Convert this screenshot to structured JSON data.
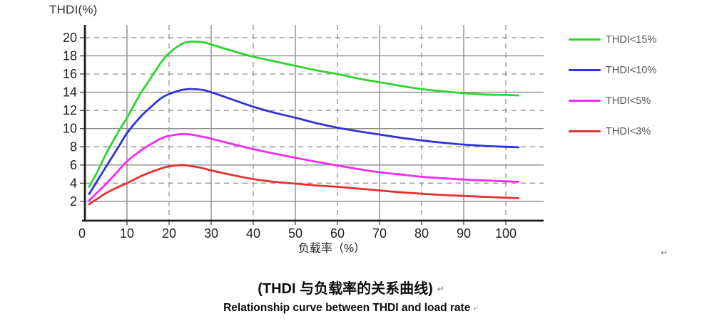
{
  "chart_data": {
    "type": "line",
    "title": "",
    "y_axis_title": "THDI(%)",
    "x_axis_title": "负载率（%）",
    "x_ticks": [
      0,
      10,
      20,
      30,
      40,
      50,
      60,
      70,
      80,
      90,
      100
    ],
    "y_ticks": [
      2,
      4,
      6,
      8,
      10,
      12,
      14,
      16,
      18,
      20
    ],
    "xlim": [
      0,
      109
    ],
    "ylim": [
      0,
      21.5
    ],
    "grid": {
      "horizontal_solid": [
        2,
        6,
        10,
        14,
        18
      ],
      "horizontal_dashed": [
        4,
        8,
        12,
        16,
        20
      ],
      "vertical_solid": [
        10,
        30,
        50,
        70,
        90
      ],
      "vertical_dashed": [
        20,
        40,
        60,
        80,
        100
      ]
    },
    "legend_position": "right",
    "x": [
      1,
      3,
      5,
      8,
      10,
      13,
      15,
      18,
      20,
      23,
      25,
      28,
      30,
      35,
      40,
      45,
      50,
      55,
      60,
      65,
      70,
      75,
      80,
      85,
      90,
      95,
      100,
      103
    ],
    "series": [
      {
        "name": "THDI<15%",
        "color": "#2ed52e",
        "values": [
          3.6,
          5.3,
          7.2,
          9.7,
          11.2,
          13.7,
          15.1,
          17.2,
          18.3,
          19.3,
          19.55,
          19.5,
          19.25,
          18.55,
          17.9,
          17.4,
          16.9,
          16.4,
          16.0,
          15.5,
          15.1,
          14.7,
          14.35,
          14.1,
          13.9,
          13.75,
          13.7,
          13.65
        ]
      },
      {
        "name": "THDI<10%",
        "color": "#3232d8",
        "values": [
          2.8,
          4.3,
          5.8,
          8.0,
          9.5,
          11.2,
          12.1,
          13.3,
          13.8,
          14.25,
          14.35,
          14.25,
          14.0,
          13.2,
          12.4,
          11.75,
          11.2,
          10.6,
          10.1,
          9.7,
          9.35,
          9.0,
          8.7,
          8.45,
          8.25,
          8.1,
          8.0,
          7.95
        ]
      },
      {
        "name": "THDI<5%",
        "color": "#f22cf2",
        "values": [
          2.1,
          3.0,
          3.9,
          5.4,
          6.4,
          7.5,
          8.1,
          8.9,
          9.2,
          9.4,
          9.35,
          9.1,
          8.9,
          8.3,
          7.75,
          7.25,
          6.8,
          6.35,
          5.95,
          5.55,
          5.2,
          4.95,
          4.7,
          4.55,
          4.4,
          4.3,
          4.2,
          4.15
        ]
      },
      {
        "name": "THDI<3%",
        "color": "#e63030",
        "values": [
          1.7,
          2.3,
          2.9,
          3.6,
          4.0,
          4.7,
          5.1,
          5.6,
          5.85,
          6.0,
          5.9,
          5.65,
          5.4,
          4.9,
          4.45,
          4.15,
          3.95,
          3.75,
          3.6,
          3.4,
          3.2,
          3.0,
          2.85,
          2.7,
          2.6,
          2.5,
          2.4,
          2.35
        ]
      }
    ]
  },
  "caption": {
    "zh": "(THDI 与负载率的关系曲线)",
    "en": "Relationship curve between THDI and load rate"
  },
  "marks": {
    "return_mark": "↵"
  }
}
